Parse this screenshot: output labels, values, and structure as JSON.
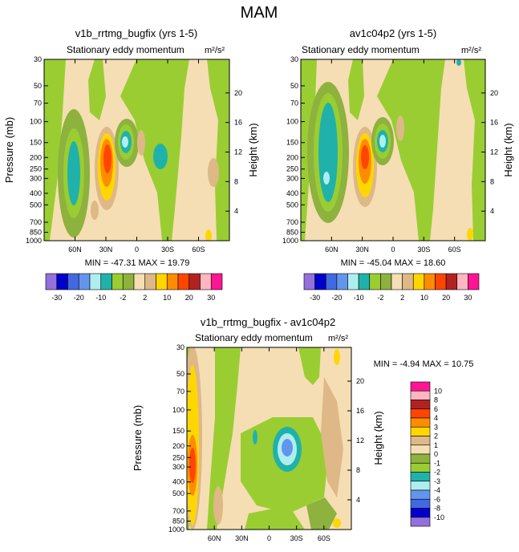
{
  "page_title": "MAM",
  "chart_data": [
    {
      "type": "heatmap",
      "title": "v1b_rrtmg_bugfix (yrs 1-5)",
      "subtitle": "Stationary eddy momentum",
      "units": "m²/s²",
      "ylabel": "Pressure (mb)",
      "ylabel_right": "Height (km)",
      "x_ticks": [
        "60N",
        "30N",
        "0",
        "30S",
        "60S"
      ],
      "y_ticks": [
        "30",
        "50",
        "70",
        "100",
        "150",
        "200",
        "250",
        "300",
        "400",
        "500",
        "700",
        "850",
        "1000"
      ],
      "y_right_ticks": [
        "20",
        "16",
        "12",
        "8",
        "4"
      ],
      "stats": "MIN = -47.31  MAX = 19.79",
      "ylim": [
        1000,
        30
      ],
      "min": -47.31,
      "max": 19.79
    },
    {
      "type": "heatmap",
      "title": "av1c04p2 (yrs 1-5)",
      "subtitle": "Stationary eddy momentum",
      "units": "m²/s²",
      "ylabel": "",
      "ylabel_right": "Height (km)",
      "x_ticks": [
        "60N",
        "30N",
        "0",
        "30S",
        "60S"
      ],
      "y_ticks": [
        "30",
        "50",
        "70",
        "100",
        "150",
        "200",
        "250",
        "300",
        "400",
        "500",
        "700",
        "850",
        "1000"
      ],
      "y_right_ticks": [
        "20",
        "16",
        "12",
        "8",
        "4"
      ],
      "stats": "MIN = -45.04  MAX = 18.60",
      "ylim": [
        1000,
        30
      ],
      "min": -45.04,
      "max": 18.6
    },
    {
      "type": "heatmap",
      "title": "v1b_rrtmg_bugfix - av1c04p2",
      "subtitle": "Stationary eddy momentum",
      "units": "m²/s²",
      "ylabel": "Pressure (mb)",
      "ylabel_right": "Height (km)",
      "x_ticks": [
        "60N",
        "30N",
        "0",
        "30S",
        "60S"
      ],
      "y_ticks": [
        "30",
        "50",
        "70",
        "100",
        "150",
        "200",
        "250",
        "300",
        "400",
        "500",
        "700",
        "850",
        "1000"
      ],
      "y_right_ticks": [
        "20",
        "16",
        "12",
        "8",
        "4"
      ],
      "stats": "MIN = -4.94  MAX = 10.75",
      "ylim": [
        1000,
        30
      ],
      "min": -4.94,
      "max": 10.75
    }
  ],
  "colorbar_top": {
    "labels": [
      "-30",
      "-20",
      "-10",
      "-2",
      "2",
      "10",
      "20",
      "30"
    ],
    "colors": [
      "#9370db",
      "#0000cd",
      "#4169e1",
      "#6495ed",
      "#afeeee",
      "#20b2aa",
      "#9acd32",
      "#8db23e",
      "#f5deb3",
      "#deb887",
      "#ffd700",
      "#ff8c00",
      "#ff4500",
      "#b22222",
      "#ffb6c1",
      "#ff1493"
    ]
  },
  "colorbar_bottom": {
    "labels": [
      "10",
      "8",
      "6",
      "4",
      "3",
      "2",
      "1",
      "0",
      "-1",
      "-2",
      "-3",
      "-4",
      "-6",
      "-8",
      "-10"
    ],
    "colors": [
      "#ff1493",
      "#ffb6c1",
      "#b22222",
      "#ff4500",
      "#ff8c00",
      "#ffd700",
      "#deb887",
      "#f5deb3",
      "#8db23e",
      "#9acd32",
      "#20b2aa",
      "#afeeee",
      "#6495ed",
      "#4169e1",
      "#0000cd",
      "#9370db"
    ]
  }
}
